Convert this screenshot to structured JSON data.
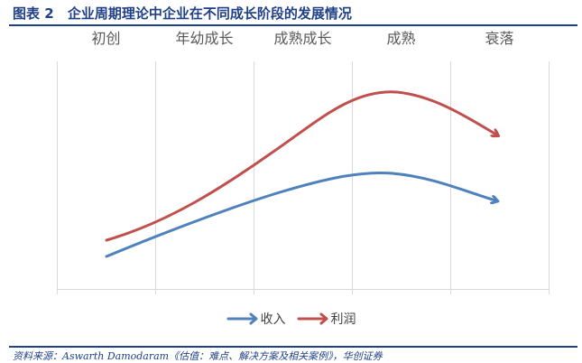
{
  "header": {
    "figure_label": "图表 2",
    "title": "企业周期理论中企业在不同成长阶段的发展情况"
  },
  "stages": [
    "初创",
    "年幼成长",
    "成熟成长",
    "成熟",
    "衰落"
  ],
  "legend": [
    {
      "label": "收入",
      "color": "#4f81bd",
      "icon": "arrow-icon"
    },
    {
      "label": "利润",
      "color": "#c0504d",
      "icon": "arrow-icon"
    }
  ],
  "source": "资料来源：Aswarth Damodaram《估值：难点、解决方案及相关案例》，华创证券",
  "colors": {
    "accent": "#1f3f86",
    "revenue": "#4f81bd",
    "profit": "#c0504d",
    "grid": "#d9d9d9"
  }
}
